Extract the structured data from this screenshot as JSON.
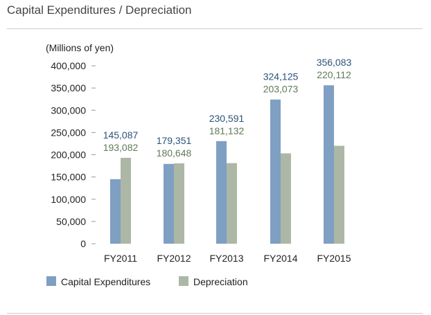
{
  "header": {
    "title": "Capital Expenditures / Depreciation"
  },
  "colors": {
    "capex": "#7f9fc3",
    "depreciation": "#adb7a5",
    "capex_label": "#2a5278",
    "depreciation_label": "#5f7a58",
    "axis": "#999999"
  },
  "chart_data": {
    "type": "bar",
    "ylabel": "(Millions of yen)",
    "ylim": [
      0,
      400000
    ],
    "yticks": [
      "0",
      "50,000",
      "100,000",
      "150,000",
      "200,000",
      "250,000",
      "300,000",
      "350,000",
      "400,000"
    ],
    "categories": [
      "FY2011",
      "FY2012",
      "FY2013",
      "FY2014",
      "FY2015"
    ],
    "series": [
      {
        "name": "Capital Expenditures",
        "values": [
          145087,
          179351,
          230591,
          324125,
          356083
        ],
        "labels": [
          "145,087",
          "179,351",
          "230,591",
          "324,125",
          "356,083"
        ]
      },
      {
        "name": "Depreciation",
        "values": [
          193082,
          180648,
          181132,
          203073,
          220112
        ],
        "labels": [
          "193,082",
          "180,648",
          "181,132",
          "203,073",
          "220,112"
        ]
      }
    ],
    "grid": false,
    "legend": "bottom-left"
  }
}
